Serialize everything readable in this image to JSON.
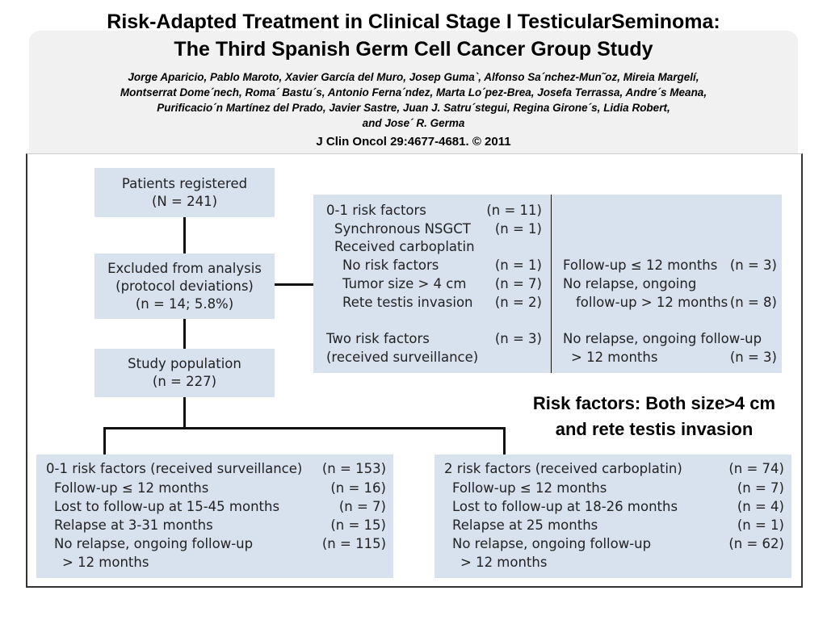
{
  "header": {
    "title": [
      "Risk-Adapted Treatment in Clinical Stage I TesticularSeminoma:",
      "The Third Spanish Germ Cell Cancer Group Study"
    ],
    "authors": [
      "Jorge Aparicio, Pablo Maroto, Xavier García del Muro, Josep Guma`, Alfonso Sa´nchez-Mun˜oz, Mireia Margelí,",
      "Montserrat Dome´nech, Roma´ Bastu´s, Antonio Ferna´ndez, Marta Lo´pez-Brea, Josefa Terrassa, Andre´s Meana,",
      "Purificacio´n Martínez del Prado, Javier Sastre, Juan J. Satru´stegui, Regina Girone´s, Lidia Robert,",
      "and Jose´ R. Germa"
    ],
    "citation": "J Clin Oncol 29:4677-4681. © 2011"
  },
  "nodes": [
    {
      "lines": [
        "Patients registered",
        "(N = 241)"
      ]
    },
    {
      "lines": [
        "Excluded from analysis",
        "(protocol deviations)",
        "(n = 14; 5.8%)"
      ]
    },
    {
      "lines": [
        "Study population",
        "(n = 227)"
      ]
    }
  ],
  "exclusion_detail": {
    "left": [
      {
        "label": "0-1 risk factors",
        "n": "(n = 11)"
      },
      {
        "label": "Synchronous NSGCT",
        "n": "(n = 1)"
      },
      {
        "label": "Received carboplatin"
      },
      {
        "label": "No risk factors",
        "n": "(n = 1)"
      },
      {
        "label": "Tumor size > 4 cm",
        "n": "(n = 7)"
      },
      {
        "label": "Rete testis invasion",
        "n": "(n = 2)"
      },
      {
        "label": "Two risk factors",
        "n": "(n = 3)"
      },
      {
        "label": "(received surveillance)"
      }
    ],
    "right": [
      {
        "label": "Follow-up ≤ 12 months",
        "n": "(n = 3)"
      },
      {
        "label": "No relapse, ongoing"
      },
      {
        "label": "follow-up > 12 months",
        "n": "(n = 8)"
      },
      {
        "label": "No relapse, ongoing follow-up"
      },
      {
        "label": "> 12 months",
        "n": "(n = 3)"
      }
    ]
  },
  "note": [
    "Risk factors: Both size>4 cm",
    "and rete testis invasion"
  ],
  "groups": [
    {
      "rows": [
        {
          "label": "0-1 risk factors (received surveillance)",
          "n": "(n = 153)"
        },
        {
          "label": "Follow-up ≤ 12 months",
          "n": "(n = 16)"
        },
        {
          "label": "Lost to follow-up at 15-45 months",
          "n": "(n = 7)"
        },
        {
          "label": "Relapse at 3-31 months",
          "n": "(n = 15)"
        },
        {
          "label": "No relapse, ongoing follow-up",
          "n": "(n = 115)"
        },
        {
          "label": "> 12 months"
        }
      ]
    },
    {
      "rows": [
        {
          "label": "2 risk factors (received carboplatin)",
          "n": "(n = 74)"
        },
        {
          "label": "Follow-up ≤ 12 months",
          "n": "(n = 7)"
        },
        {
          "label": "Lost to follow-up at 18-26 months",
          "n": "(n = 4)"
        },
        {
          "label": "Relapse at 25 months",
          "n": "(n = 1)"
        },
        {
          "label": "No relapse, ongoing follow-up",
          "n": "(n = 62)"
        },
        {
          "label": "> 12 months"
        }
      ]
    }
  ]
}
